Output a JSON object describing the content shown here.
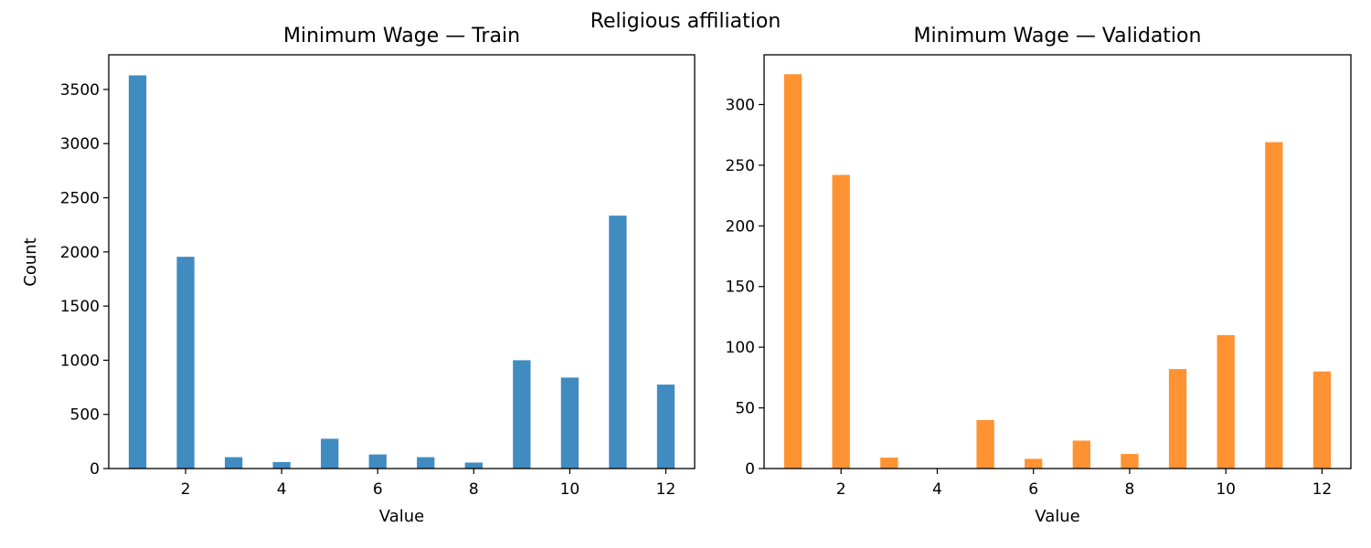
{
  "figure": {
    "suptitle": "Religious affiliation"
  },
  "chart_data": [
    {
      "type": "bar",
      "title": "Minimum Wage — Train",
      "xlabel": "Value",
      "ylabel": "Count",
      "color": "#1f77b4",
      "x": [
        1,
        2,
        3,
        4,
        5,
        6,
        7,
        8,
        9,
        10,
        11,
        12
      ],
      "values": [
        3630,
        1955,
        105,
        60,
        275,
        130,
        105,
        55,
        1000,
        840,
        2335,
        775
      ],
      "xlim": [
        0.4,
        12.6
      ],
      "ylim": [
        0,
        3820
      ],
      "xticks": [
        2,
        4,
        6,
        8,
        10,
        12
      ],
      "yticks": [
        0,
        500,
        1000,
        1500,
        2000,
        2500,
        3000,
        3500
      ],
      "grid": false
    },
    {
      "type": "bar",
      "title": "Minimum Wage — Validation",
      "xlabel": "Value",
      "ylabel": "",
      "color": "#ff7f0e",
      "x": [
        1,
        2,
        3,
        4,
        5,
        6,
        7,
        8,
        9,
        10,
        11,
        12
      ],
      "values": [
        325,
        242,
        9,
        0,
        40,
        8,
        23,
        12,
        82,
        110,
        269,
        80
      ],
      "xlim": [
        0.4,
        12.6
      ],
      "ylim": [
        0,
        341
      ],
      "xticks": [
        2,
        4,
        6,
        8,
        10,
        12
      ],
      "yticks": [
        0,
        50,
        100,
        150,
        200,
        250,
        300
      ],
      "grid": false
    }
  ]
}
